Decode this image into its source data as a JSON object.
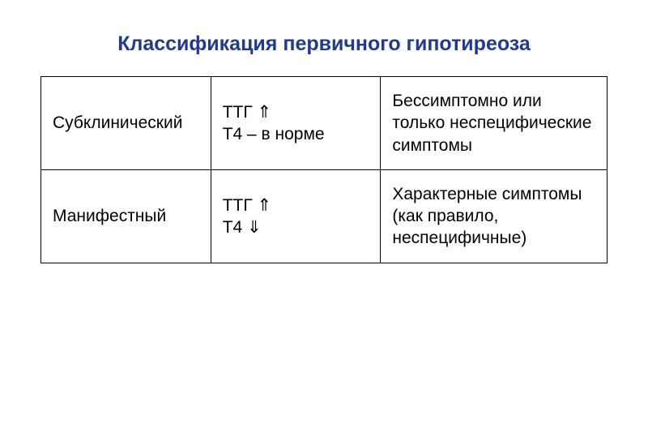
{
  "title": "Классификация первичного гипотиреоза",
  "table": {
    "columns": [
      {
        "width": "30%"
      },
      {
        "width": "30%"
      },
      {
        "width": "40%"
      }
    ],
    "rows": [
      {
        "c1": "Субклинический",
        "c2_line1": "ТТГ ⇑",
        "c2_line2": "Т4 – в норме",
        "c3": "Бессимптомно или только неспецифические симптомы"
      },
      {
        "c1": "Манифестный",
        "c2_line1": "ТТГ ⇑",
        "c2_line2": "Т4 ⇓",
        "c3": "Характерные симптомы (как правило, неспецифичные)"
      }
    ]
  },
  "style": {
    "title_color": "#1f3a93",
    "title_fontsize": 25,
    "cell_fontsize": 21,
    "border_color": "#000000",
    "background_color": "#ffffff",
    "text_color": "#000000"
  }
}
